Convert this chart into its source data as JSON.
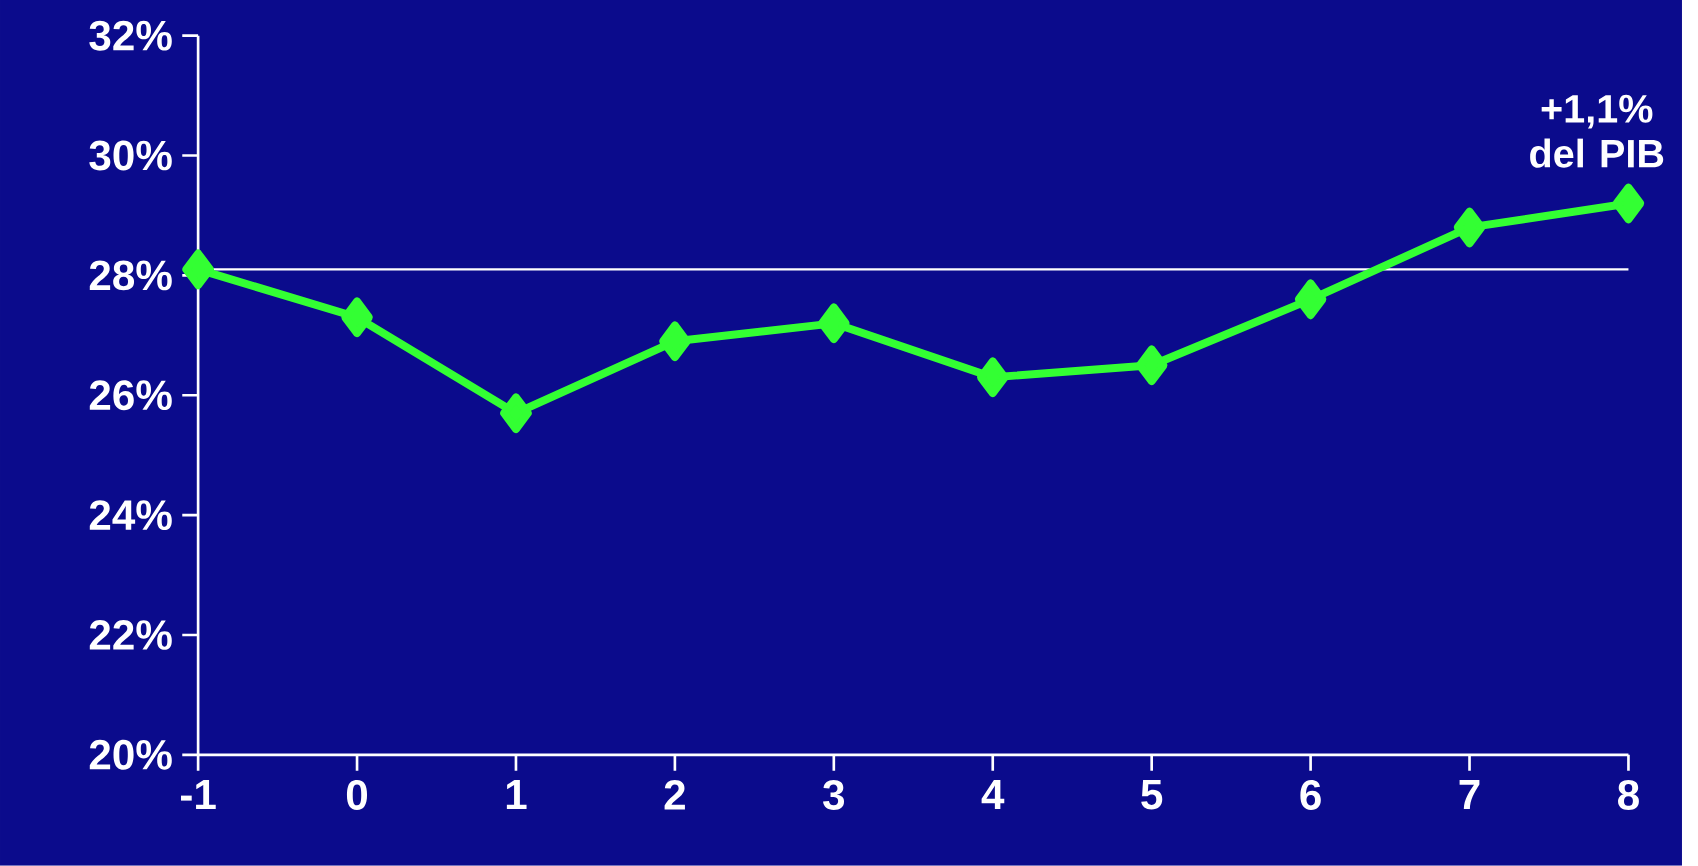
{
  "chart_data": {
    "type": "line",
    "x": [
      -1,
      0,
      1,
      2,
      3,
      4,
      5,
      6,
      7,
      8
    ],
    "series": [
      {
        "color": "#33ff33",
        "values": [
          28.1,
          27.3,
          25.7,
          26.9,
          27.2,
          26.3,
          26.5,
          27.6,
          28.8,
          29.2
        ]
      }
    ],
    "xlim": [
      -1,
      8
    ],
    "xticks": [
      -1,
      0,
      1,
      2,
      3,
      4,
      5,
      6,
      7,
      8
    ],
    "ylim": [
      20,
      32
    ],
    "yticks": [
      {
        "value": 20,
        "label": "20%"
      },
      {
        "value": 22,
        "label": "22%"
      },
      {
        "value": 24,
        "label": "24%"
      },
      {
        "value": 26,
        "label": "26%"
      },
      {
        "value": 28,
        "label": "28%"
      },
      {
        "value": 30,
        "label": "30%"
      },
      {
        "value": 32,
        "label": "32%"
      }
    ],
    "ref_lines": [
      {
        "axis": "y",
        "value": 28.1,
        "color": "#ffffff"
      }
    ],
    "annotations": [
      {
        "text": "+1,1% del PIB",
        "x": 8,
        "y": 29.2
      }
    ],
    "marker": "diamond",
    "line_style": "solid"
  }
}
